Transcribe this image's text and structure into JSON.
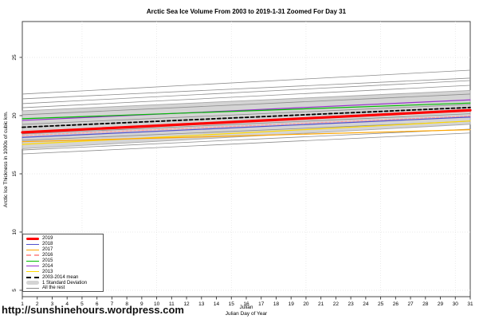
{
  "caption": {
    "url": "http://sunshinehours.wordpress.com"
  },
  "chart_data": {
    "type": "line",
    "title": "Arctic Sea Ice Volume From 2003 to 2019-1-31 Zoomed For Day 31",
    "xlabel": "Julian",
    "xlabel_sub": "Julian Day of Year",
    "ylabel": "Arctic Ice Thickness in 1000s of cubic km.",
    "xlim": [
      1,
      31
    ],
    "ylim": [
      4.45,
      28.08
    ],
    "x": [
      1,
      31
    ],
    "x_ticks": [
      1,
      2,
      3,
      4,
      5,
      6,
      7,
      8,
      9,
      10,
      11,
      12,
      13,
      14,
      15,
      16,
      17,
      18,
      19,
      20,
      21,
      22,
      23,
      24,
      25,
      26,
      27,
      28,
      29,
      30,
      31
    ],
    "y_ticks": [
      5,
      10,
      15,
      20,
      25
    ],
    "grid_x": [
      5,
      10,
      15,
      20,
      25,
      30
    ],
    "grid_on": true,
    "legend_position": "bottom-left",
    "band": {
      "name": "1 Standard Deviation",
      "fill": "#D4D4D4",
      "edge": "#A8A8A8",
      "upper": [
        20.41,
        22.16
      ],
      "lower": [
        17.16,
        19.26
      ]
    },
    "rest": {
      "name": "All the rest",
      "color": "#8C8C8C",
      "lines": [
        [
          21.85,
          23.9
        ],
        [
          21.44,
          23.22
        ],
        [
          21.03,
          23.01
        ],
        [
          20.68,
          22.6
        ],
        [
          20.07,
          21.85
        ],
        [
          19.25,
          20.96
        ],
        [
          18.42,
          20.16
        ],
        [
          17.88,
          19.52
        ],
        [
          17.05,
          18.84
        ],
        [
          16.71,
          18.51
        ]
      ]
    },
    "series": [
      {
        "name": "2019",
        "color": "#FF0000",
        "width": 3.2,
        "dash": null,
        "z": 9,
        "values": [
          18.56,
          20.46
        ]
      },
      {
        "name": "2018",
        "color": "#5050CD",
        "width": 1.2,
        "dash": null,
        "z": 6,
        "values": [
          18.13,
          19.88
        ]
      },
      {
        "name": "2017",
        "color": "#FFA500",
        "width": 1.2,
        "dash": null,
        "z": 5,
        "values": [
          17.76,
          18.79
        ]
      },
      {
        "name": "2016",
        "color": "#FF9D9D",
        "width": 1.2,
        "dash": "3,2",
        "z": 4,
        "values": [
          18.29,
          19.97
        ]
      },
      {
        "name": "2015",
        "color": "#00BB00",
        "width": 1.2,
        "dash": null,
        "z": 3,
        "values": [
          19.73,
          21.08
        ]
      },
      {
        "name": "2014",
        "color": "#9933CC",
        "width": 1.2,
        "dash": null,
        "z": 2,
        "values": [
          19.59,
          21.35
        ]
      },
      {
        "name": "2013",
        "color": "#FFD900",
        "width": 1.2,
        "dash": null,
        "z": 1,
        "values": [
          17.53,
          19.54
        ]
      },
      {
        "name": "2003-2014 mean",
        "color": "#000000",
        "width": 1.8,
        "dash": "4,3",
        "z": 10,
        "values": [
          19.0,
          20.7
        ]
      }
    ],
    "legend": [
      {
        "label": "2019",
        "swatch": "thick",
        "color": "#FF0000"
      },
      {
        "label": "2018",
        "swatch": "line",
        "color": "#5050CD"
      },
      {
        "label": "2017",
        "swatch": "line",
        "color": "#FFA500"
      },
      {
        "label": "2016",
        "swatch": "dash",
        "color": "#FF9D9D"
      },
      {
        "label": "2015",
        "swatch": "line",
        "color": "#00BB00"
      },
      {
        "label": "2014",
        "swatch": "line",
        "color": "#9933CC"
      },
      {
        "label": "2013",
        "swatch": "line",
        "color": "#FFD900"
      },
      {
        "label": "2003-2014 mean",
        "swatch": "dash",
        "color": "#000000"
      },
      {
        "label": "1 Standard Deviation",
        "swatch": "band",
        "color": "#D4D4D4"
      },
      {
        "label": "All the rest",
        "swatch": "thin",
        "color": "#8C8C8C"
      }
    ]
  }
}
